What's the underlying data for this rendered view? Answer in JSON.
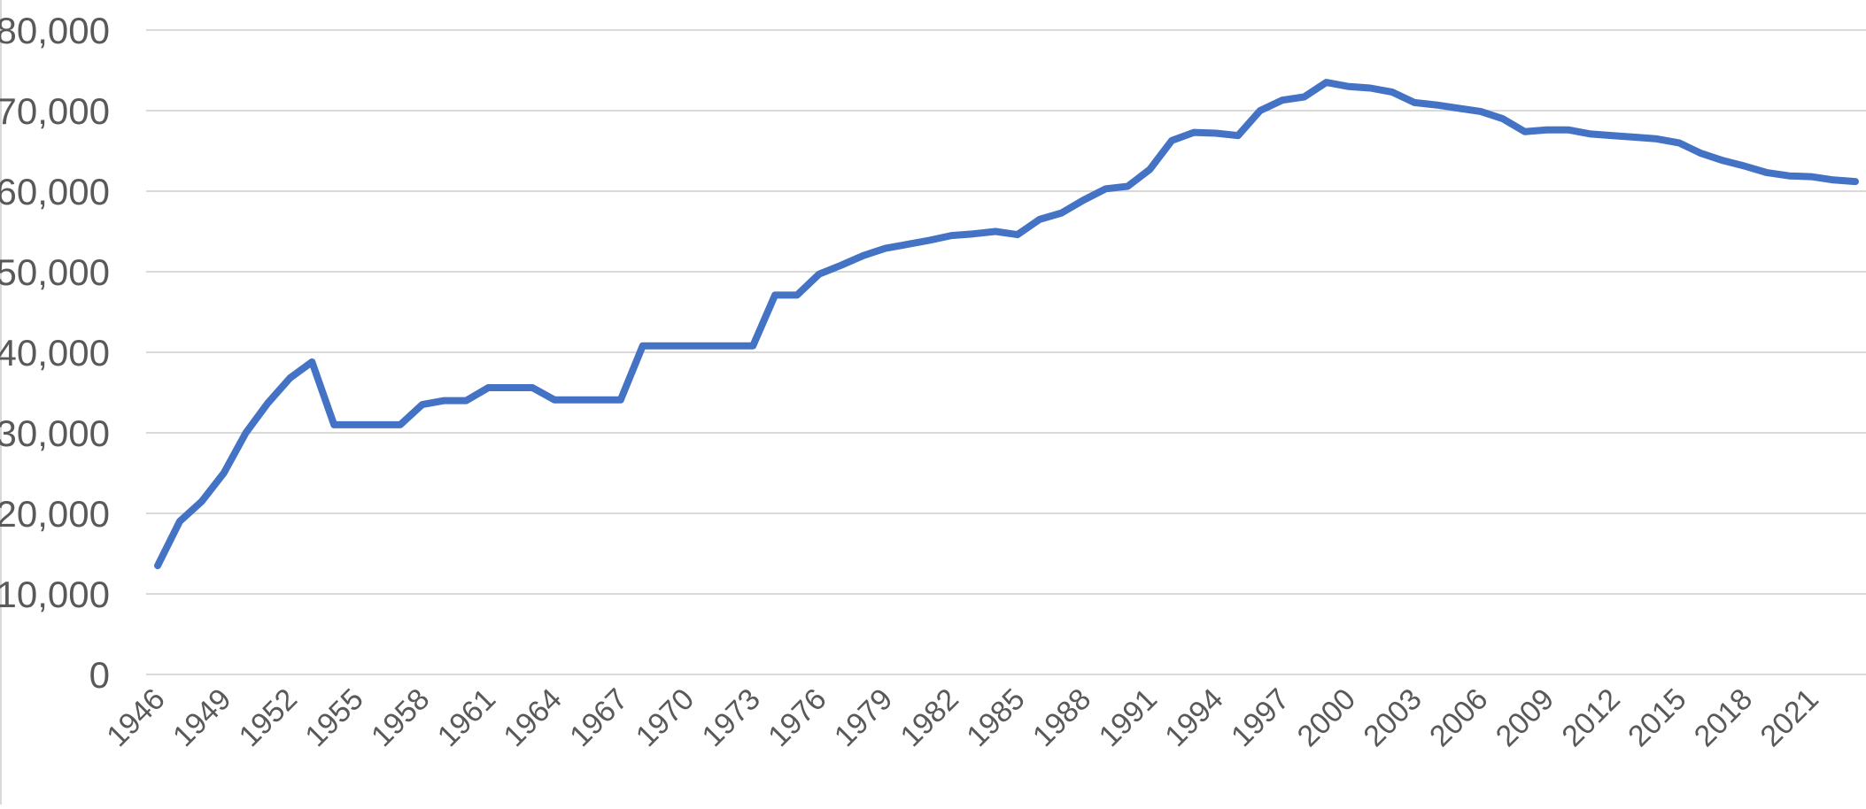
{
  "chart_data": {
    "type": "line",
    "title": "",
    "xlabel": "",
    "ylabel": "",
    "ylim": [
      0,
      80000
    ],
    "yticks": [
      0,
      10000,
      20000,
      30000,
      40000,
      50000,
      60000,
      70000,
      80000
    ],
    "ytick_labels": [
      "0",
      "10,000",
      "20,000",
      "30,000",
      "40,000",
      "50,000",
      "60,000",
      "70,000",
      "80,000"
    ],
    "xtick_labels": [
      "1946",
      "1949",
      "1952",
      "1955",
      "1958",
      "1961",
      "1964",
      "1967",
      "1970",
      "1973",
      "1976",
      "1979",
      "1982",
      "1985",
      "1988",
      "1991",
      "1994",
      "1997",
      "2000",
      "2003",
      "2006",
      "2009",
      "2012",
      "2015",
      "2018",
      "2021"
    ],
    "grid": true,
    "legend": "none",
    "line_color": "#4472c4",
    "series": [
      {
        "x": [
          1946,
          1947,
          1948,
          1949,
          1950,
          1951,
          1952,
          1953,
          1954,
          1955,
          1956,
          1957,
          1958,
          1959,
          1960,
          1961,
          1962,
          1963,
          1964,
          1965,
          1966,
          1967,
          1968,
          1969,
          1970,
          1971,
          1972,
          1973,
          1974,
          1975,
          1976,
          1977,
          1978,
          1979,
          1980,
          1981,
          1982,
          1983,
          1984,
          1985,
          1986,
          1987,
          1988,
          1989,
          1990,
          1991,
          1992,
          1993,
          1994,
          1995,
          1996,
          1997,
          1998,
          1999,
          2000,
          2001,
          2002,
          2003,
          2004,
          2005,
          2006,
          2007,
          2008,
          2009,
          2010,
          2011,
          2012,
          2013,
          2014,
          2015,
          2016,
          2017,
          2018,
          2019,
          2020,
          2021,
          2022,
          2023
        ],
        "values": [
          13500,
          19000,
          21500,
          25000,
          30000,
          33700,
          36800,
          38800,
          31000,
          31000,
          31000,
          31000,
          33500,
          34000,
          34000,
          35600,
          35600,
          35600,
          34100,
          34100,
          34100,
          34100,
          40800,
          40800,
          40800,
          40800,
          40800,
          40800,
          47100,
          47100,
          49700,
          50800,
          52000,
          52900,
          53400,
          53900,
          54500,
          54700,
          55000,
          54600,
          56500,
          57300,
          58900,
          60300,
          60600,
          62700,
          66300,
          67300,
          67200,
          66900,
          70000,
          71300,
          71700,
          73500,
          73000,
          72800,
          72300,
          71000,
          70700,
          70300,
          69900,
          69000,
          67400,
          67600,
          67600,
          67100,
          66900,
          66700,
          66500,
          66000,
          64700,
          63800,
          63100,
          62300,
          61900,
          61800,
          61400,
          61200
        ]
      }
    ]
  }
}
